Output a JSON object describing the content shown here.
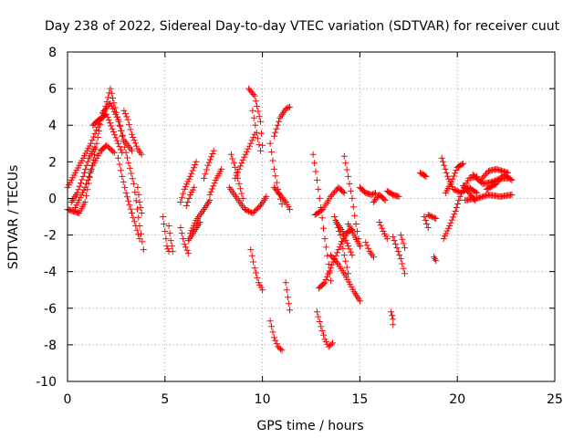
{
  "chart_data": {
    "type": "scatter",
    "title": "Day 238 of 2022, Sidereal Day-to-day VTEC variation (SDTVAR) for receiver cuut",
    "xlabel": "GPS time / hours",
    "ylabel": "SDTVAR / TECUs",
    "xlim": [
      0,
      25
    ],
    "ylim": [
      -10,
      8
    ],
    "xticks": [
      0,
      5,
      10,
      15,
      20,
      25
    ],
    "yticks": [
      -10,
      -8,
      -6,
      -4,
      -2,
      0,
      2,
      4,
      6,
      8
    ],
    "grid": true,
    "marker": "+",
    "color": "#ff0000",
    "arcs": [
      {
        "name": "arc-01",
        "points": [
          [
            0.0,
            0.6
          ],
          [
            0.6,
            1.8
          ],
          [
            1.2,
            3.0
          ],
          [
            1.9,
            4.8
          ],
          [
            2.2,
            6.0
          ],
          [
            2.5,
            4.7
          ],
          [
            2.9,
            3.2
          ],
          [
            3.3,
            2.6
          ]
        ]
      },
      {
        "name": "arc-02",
        "points": [
          [
            0.0,
            -0.6
          ],
          [
            0.3,
            -0.7
          ],
          [
            0.6,
            -0.8
          ],
          [
            0.9,
            -0.2
          ],
          [
            1.2,
            1.5
          ],
          [
            1.5,
            3.0
          ],
          [
            1.8,
            4.7
          ],
          [
            2.2,
            5.2
          ],
          [
            2.6,
            4.3
          ],
          [
            3.0,
            2.5
          ],
          [
            3.4,
            0.8
          ],
          [
            3.7,
            -1.5
          ],
          [
            3.9,
            -2.8
          ]
        ]
      },
      {
        "name": "arc-03",
        "points": [
          [
            0.4,
            -0.5
          ],
          [
            0.9,
            0.6
          ],
          [
            1.3,
            1.8
          ],
          [
            1.7,
            2.6
          ],
          [
            2.0,
            2.9
          ],
          [
            2.4,
            2.5
          ]
        ]
      },
      {
        "name": "arc-04",
        "points": [
          [
            2.9,
            4.8
          ],
          [
            3.1,
            4.3
          ],
          [
            3.3,
            3.5
          ],
          [
            3.6,
            2.7
          ],
          [
            3.8,
            2.4
          ]
        ]
      },
      {
        "name": "arc-05",
        "points": [
          [
            2.6,
            2.2
          ],
          [
            2.8,
            1.2
          ],
          [
            3.0,
            0.3
          ],
          [
            3.3,
            -0.8
          ],
          [
            3.5,
            -1.5
          ],
          [
            3.7,
            -2.2
          ]
        ]
      },
      {
        "name": "arc-06",
        "points": [
          [
            1.3,
            4.0
          ],
          [
            1.6,
            4.3
          ],
          [
            2.0,
            4.6
          ],
          [
            2.3,
            3.8
          ],
          [
            2.6,
            3.0
          ],
          [
            2.8,
            2.5
          ]
        ]
      },
      {
        "name": "arc-07",
        "points": [
          [
            0.2,
            -0.2
          ],
          [
            0.5,
            0.3
          ],
          [
            0.8,
            1.2
          ],
          [
            1.1,
            2.2
          ],
          [
            1.4,
            2.8
          ]
        ]
      },
      {
        "name": "arc-08",
        "points": [
          [
            3.6,
            0.6
          ],
          [
            3.7,
            -0.2
          ],
          [
            3.8,
            -0.8
          ]
        ]
      },
      {
        "name": "arc-09",
        "points": [
          [
            4.9,
            -1.0
          ],
          [
            5.0,
            -1.8
          ],
          [
            5.1,
            -2.6
          ],
          [
            5.2,
            -2.9
          ]
        ]
      },
      {
        "name": "arc-10",
        "points": [
          [
            5.2,
            -1.5
          ],
          [
            5.3,
            -2.3
          ],
          [
            5.4,
            -2.9
          ]
        ]
      },
      {
        "name": "arc-11",
        "points": [
          [
            5.8,
            -1.6
          ],
          [
            6.0,
            -2.5
          ],
          [
            6.2,
            -3.0
          ]
        ]
      },
      {
        "name": "arc-12",
        "points": [
          [
            5.8,
            -0.2
          ],
          [
            6.0,
            0.5
          ],
          [
            6.3,
            1.2
          ],
          [
            6.6,
            2.0
          ]
        ]
      },
      {
        "name": "arc-13",
        "points": [
          [
            6.1,
            -0.4
          ],
          [
            6.3,
            0.2
          ],
          [
            6.5,
            0.6
          ]
        ]
      },
      {
        "name": "arc-14",
        "points": [
          [
            6.3,
            -1.9
          ],
          [
            6.6,
            -1.2
          ],
          [
            7.0,
            -0.6
          ],
          [
            7.3,
            -0.1
          ]
        ]
      },
      {
        "name": "arc-15",
        "points": [
          [
            6.2,
            -2.3
          ],
          [
            6.5,
            -1.8
          ],
          [
            6.8,
            -1.3
          ]
        ]
      },
      {
        "name": "arc-16",
        "points": [
          [
            7.0,
            1.1
          ],
          [
            7.2,
            1.8
          ],
          [
            7.5,
            2.6
          ]
        ]
      },
      {
        "name": "arc-17",
        "points": [
          [
            7.3,
            0.2
          ],
          [
            7.6,
            1.0
          ],
          [
            7.9,
            1.6
          ]
        ]
      },
      {
        "name": "arc-18",
        "points": [
          [
            8.4,
            2.4
          ],
          [
            8.6,
            1.7
          ],
          [
            8.8,
            0.8
          ],
          [
            9.0,
            0.0
          ]
        ]
      },
      {
        "name": "arc-19",
        "points": [
          [
            8.3,
            0.6
          ],
          [
            8.7,
            0.0
          ],
          [
            9.1,
            -0.6
          ],
          [
            9.5,
            -0.8
          ],
          [
            9.9,
            -0.4
          ],
          [
            10.2,
            0.1
          ]
        ]
      },
      {
        "name": "arc-20",
        "points": [
          [
            8.6,
            1.1
          ],
          [
            9.0,
            2.1
          ],
          [
            9.4,
            3.0
          ],
          [
            9.6,
            3.5
          ]
        ]
      },
      {
        "name": "arc-21",
        "points": [
          [
            9.3,
            6.0
          ],
          [
            9.6,
            5.6
          ],
          [
            9.9,
            4.2
          ],
          [
            10.0,
            2.9
          ]
        ]
      },
      {
        "name": "arc-22",
        "points": [
          [
            9.5,
            4.8
          ],
          [
            9.7,
            3.6
          ],
          [
            9.9,
            2.6
          ]
        ]
      },
      {
        "name": "arc-23",
        "points": [
          [
            9.4,
            -2.8
          ],
          [
            9.6,
            -3.8
          ],
          [
            9.8,
            -4.6
          ],
          [
            10.0,
            -5.0
          ]
        ]
      },
      {
        "name": "arc-24",
        "points": [
          [
            10.4,
            3.0
          ],
          [
            10.6,
            1.6
          ],
          [
            10.8,
            0.5
          ],
          [
            11.0,
            -0.3
          ]
        ]
      },
      {
        "name": "arc-25",
        "points": [
          [
            10.6,
            3.4
          ],
          [
            10.9,
            4.4
          ],
          [
            11.2,
            4.9
          ],
          [
            11.4,
            5.0
          ]
        ]
      },
      {
        "name": "arc-26",
        "points": [
          [
            10.6,
            0.6
          ],
          [
            10.9,
            0.2
          ],
          [
            11.2,
            -0.2
          ],
          [
            11.4,
            -0.6
          ]
        ]
      },
      {
        "name": "arc-27",
        "points": [
          [
            10.4,
            -6.7
          ],
          [
            10.6,
            -7.6
          ],
          [
            10.8,
            -8.1
          ],
          [
            11.0,
            -8.3
          ]
        ]
      },
      {
        "name": "arc-28",
        "points": [
          [
            11.2,
            -4.6
          ],
          [
            11.3,
            -5.4
          ],
          [
            11.4,
            -6.1
          ]
        ]
      },
      {
        "name": "arc-29",
        "points": [
          [
            12.6,
            2.4
          ],
          [
            12.8,
            1.0
          ],
          [
            13.0,
            -0.5
          ],
          [
            13.2,
            -2.2
          ],
          [
            13.4,
            -3.6
          ],
          [
            13.5,
            -4.5
          ]
        ]
      },
      {
        "name": "arc-30",
        "points": [
          [
            12.9,
            -4.9
          ],
          [
            13.2,
            -4.6
          ],
          [
            13.5,
            -3.8
          ],
          [
            13.9,
            -2.8
          ],
          [
            14.3,
            -1.9
          ],
          [
            14.6,
            -1.7
          ]
        ]
      },
      {
        "name": "arc-31",
        "points": [
          [
            12.8,
            -6.2
          ],
          [
            13.0,
            -7.0
          ],
          [
            13.2,
            -7.7
          ],
          [
            13.4,
            -8.1
          ],
          [
            13.6,
            -7.9
          ]
        ]
      },
      {
        "name": "arc-32",
        "points": [
          [
            12.7,
            -0.9
          ],
          [
            13.1,
            -0.6
          ],
          [
            13.5,
            0.1
          ],
          [
            13.9,
            0.6
          ],
          [
            14.2,
            0.3
          ]
        ]
      },
      {
        "name": "arc-33",
        "points": [
          [
            13.5,
            -3.1
          ],
          [
            13.9,
            -3.6
          ],
          [
            14.3,
            -4.3
          ],
          [
            14.7,
            -5.1
          ],
          [
            15.0,
            -5.6
          ]
        ]
      },
      {
        "name": "arc-34",
        "points": [
          [
            13.7,
            -1.0
          ],
          [
            14.0,
            -2.0
          ],
          [
            14.2,
            -3.1
          ],
          [
            14.4,
            -4.1
          ]
        ]
      },
      {
        "name": "arc-35",
        "points": [
          [
            14.2,
            2.3
          ],
          [
            14.4,
            1.2
          ],
          [
            14.6,
            0.0
          ],
          [
            14.8,
            -1.4
          ],
          [
            15.0,
            -2.6
          ]
        ]
      },
      {
        "name": "arc-36",
        "points": [
          [
            14.4,
            -1.4
          ],
          [
            14.7,
            -2.0
          ],
          [
            15.0,
            -2.6
          ]
        ]
      },
      {
        "name": "arc-37",
        "points": [
          [
            13.8,
            -1.3
          ],
          [
            14.1,
            -1.8
          ],
          [
            14.4,
            -2.6
          ],
          [
            14.6,
            -3.1
          ]
        ]
      },
      {
        "name": "arc-38",
        "points": [
          [
            15.0,
            0.6
          ],
          [
            15.3,
            0.3
          ],
          [
            15.6,
            0.2
          ],
          [
            15.8,
            0.3
          ]
        ]
      },
      {
        "name": "arc-39",
        "points": [
          [
            15.3,
            -2.4
          ],
          [
            15.5,
            -2.9
          ],
          [
            15.7,
            -3.2
          ]
        ]
      },
      {
        "name": "arc-40",
        "points": [
          [
            15.7,
            -0.2
          ],
          [
            16.0,
            0.2
          ],
          [
            16.3,
            -0.1
          ]
        ]
      },
      {
        "name": "arc-41",
        "points": [
          [
            16.4,
            0.4
          ],
          [
            16.7,
            0.2
          ],
          [
            17.0,
            0.1
          ]
        ]
      },
      {
        "name": "arc-42",
        "points": [
          [
            16.0,
            -1.3
          ],
          [
            16.2,
            -1.8
          ],
          [
            16.4,
            -2.2
          ]
        ]
      },
      {
        "name": "arc-43",
        "points": [
          [
            16.7,
            -2.1
          ],
          [
            16.9,
            -2.7
          ],
          [
            17.1,
            -3.3
          ],
          [
            17.3,
            -4.1
          ]
        ]
      },
      {
        "name": "arc-44",
        "points": [
          [
            16.6,
            -6.2
          ],
          [
            16.7,
            -6.6
          ],
          [
            16.7,
            -6.9
          ]
        ]
      },
      {
        "name": "arc-45",
        "points": [
          [
            17.1,
            -2.0
          ],
          [
            17.3,
            -2.7
          ]
        ]
      },
      {
        "name": "arc-46",
        "points": [
          [
            18.3,
            -1.0
          ],
          [
            18.5,
            -1.6
          ]
        ]
      },
      {
        "name": "arc-47",
        "points": [
          [
            18.8,
            -3.2
          ],
          [
            18.9,
            -3.4
          ]
        ]
      },
      {
        "name": "arc-48",
        "points": [
          [
            18.1,
            1.4
          ],
          [
            18.4,
            1.2
          ]
        ]
      },
      {
        "name": "arc-49",
        "points": [
          [
            18.5,
            -0.9
          ],
          [
            18.9,
            -1.1
          ]
        ]
      },
      {
        "name": "arc-50",
        "points": [
          [
            19.2,
            2.2
          ],
          [
            19.5,
            1.2
          ],
          [
            19.8,
            0.5
          ],
          [
            20.2,
            0.3
          ],
          [
            20.6,
            0.6
          ],
          [
            21.0,
            0.3
          ]
        ]
      },
      {
        "name": "arc-51",
        "points": [
          [
            19.3,
            -2.2
          ],
          [
            19.6,
            -1.5
          ],
          [
            19.9,
            -0.7
          ],
          [
            20.2,
            0.3
          ],
          [
            20.6,
            1.1
          ],
          [
            21.0,
            1.2
          ]
        ]
      },
      {
        "name": "arc-52",
        "points": [
          [
            19.4,
            0.3
          ],
          [
            19.7,
            0.9
          ],
          [
            20.0,
            1.7
          ],
          [
            20.3,
            1.9
          ]
        ]
      },
      {
        "name": "arc-53",
        "points": [
          [
            20.8,
            1.3
          ],
          [
            21.3,
            0.8
          ],
          [
            21.8,
            0.9
          ],
          [
            22.2,
            1.1
          ],
          [
            22.6,
            1.1
          ]
        ]
      },
      {
        "name": "arc-54",
        "points": [
          [
            21.5,
            0.5
          ],
          [
            22.0,
            0.8
          ],
          [
            22.4,
            1.3
          ],
          [
            22.8,
            1.0
          ]
        ]
      },
      {
        "name": "arc-55",
        "points": [
          [
            20.4,
            -0.1
          ],
          [
            21.0,
            0.0
          ],
          [
            21.6,
            0.2
          ],
          [
            22.2,
            0.1
          ],
          [
            22.8,
            0.2
          ]
        ]
      },
      {
        "name": "arc-56",
        "points": [
          [
            20.3,
            0.7
          ],
          [
            20.6,
            0.3
          ],
          [
            20.9,
            -0.1
          ]
        ]
      },
      {
        "name": "arc-57",
        "points": [
          [
            21.2,
            1.0
          ],
          [
            21.6,
            1.5
          ],
          [
            22.0,
            1.6
          ],
          [
            22.6,
            1.4
          ]
        ]
      }
    ]
  }
}
